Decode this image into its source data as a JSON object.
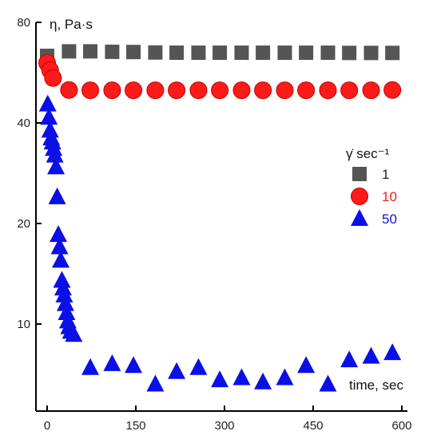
{
  "chart_data": {
    "type": "scatter",
    "ylabel": "η, Pa·s",
    "xlabel": "time, sec",
    "xlim": [
      -15,
      600
    ],
    "ylim": [
      0,
      80
    ],
    "x_ticks": [
      0,
      150,
      300,
      450,
      600
    ],
    "y_ticks": [
      10,
      20,
      40,
      80
    ],
    "legend_title": "γ̇ sec⁻¹",
    "legend_position": "right",
    "series": [
      {
        "name": "1",
        "marker": "square",
        "color": "#555555",
        "points": [
          [
            0,
            63.5
          ],
          [
            37,
            65.5
          ],
          [
            73,
            65.5
          ],
          [
            110,
            65.3
          ],
          [
            146,
            65.2
          ],
          [
            183,
            65.0
          ],
          [
            219,
            64.9
          ],
          [
            256,
            64.9
          ],
          [
            292,
            64.9
          ],
          [
            329,
            64.9
          ],
          [
            365,
            64.9
          ],
          [
            402,
            64.9
          ],
          [
            438,
            64.9
          ],
          [
            475,
            64.9
          ],
          [
            511,
            64.8
          ],
          [
            548,
            64.8
          ],
          [
            584,
            64.8
          ]
        ]
      },
      {
        "name": "10",
        "marker": "circle",
        "color": "#ff1a1a",
        "points": [
          [
            0,
            60.5
          ],
          [
            5,
            57.5
          ],
          [
            10,
            54.5
          ],
          [
            37,
            50.2
          ],
          [
            73,
            50.1
          ],
          [
            110,
            50.1
          ],
          [
            146,
            50.1
          ],
          [
            183,
            50.1
          ],
          [
            219,
            50.1
          ],
          [
            256,
            50.1
          ],
          [
            292,
            50.1
          ],
          [
            329,
            50.1
          ],
          [
            365,
            50.1
          ],
          [
            402,
            50.1
          ],
          [
            438,
            50.1
          ],
          [
            475,
            50.1
          ],
          [
            511,
            50.1
          ],
          [
            548,
            50.1
          ],
          [
            584,
            50.2
          ]
        ]
      },
      {
        "name": "50",
        "marker": "triangle",
        "color": "#0a10e6",
        "points": [
          [
            1,
            45.5
          ],
          [
            3,
            41.5
          ],
          [
            5,
            38
          ],
          [
            7,
            36
          ],
          [
            9,
            35
          ],
          [
            11,
            33.5
          ],
          [
            13,
            32
          ],
          [
            15,
            29.5
          ],
          [
            17,
            24
          ],
          [
            19,
            18.5
          ],
          [
            21,
            17
          ],
          [
            23,
            15.5
          ],
          [
            25,
            13.5
          ],
          [
            27,
            12.8
          ],
          [
            29,
            12.2
          ],
          [
            31,
            11.5
          ],
          [
            33,
            10.8
          ],
          [
            35,
            10.2
          ],
          [
            37,
            9.8
          ],
          [
            40,
            9.5
          ],
          [
            45,
            9.3
          ],
          [
            73,
            7.4
          ],
          [
            110,
            7.6
          ],
          [
            146,
            7.5
          ],
          [
            183,
            6.6
          ],
          [
            219,
            7.2
          ],
          [
            256,
            7.4
          ],
          [
            292,
            6.8
          ],
          [
            329,
            6.9
          ],
          [
            365,
            6.7
          ],
          [
            402,
            6.9
          ],
          [
            438,
            7.5
          ],
          [
            475,
            6.6
          ],
          [
            511,
            7.8
          ],
          [
            548,
            8.0
          ],
          [
            584,
            8.2
          ]
        ]
      }
    ]
  }
}
